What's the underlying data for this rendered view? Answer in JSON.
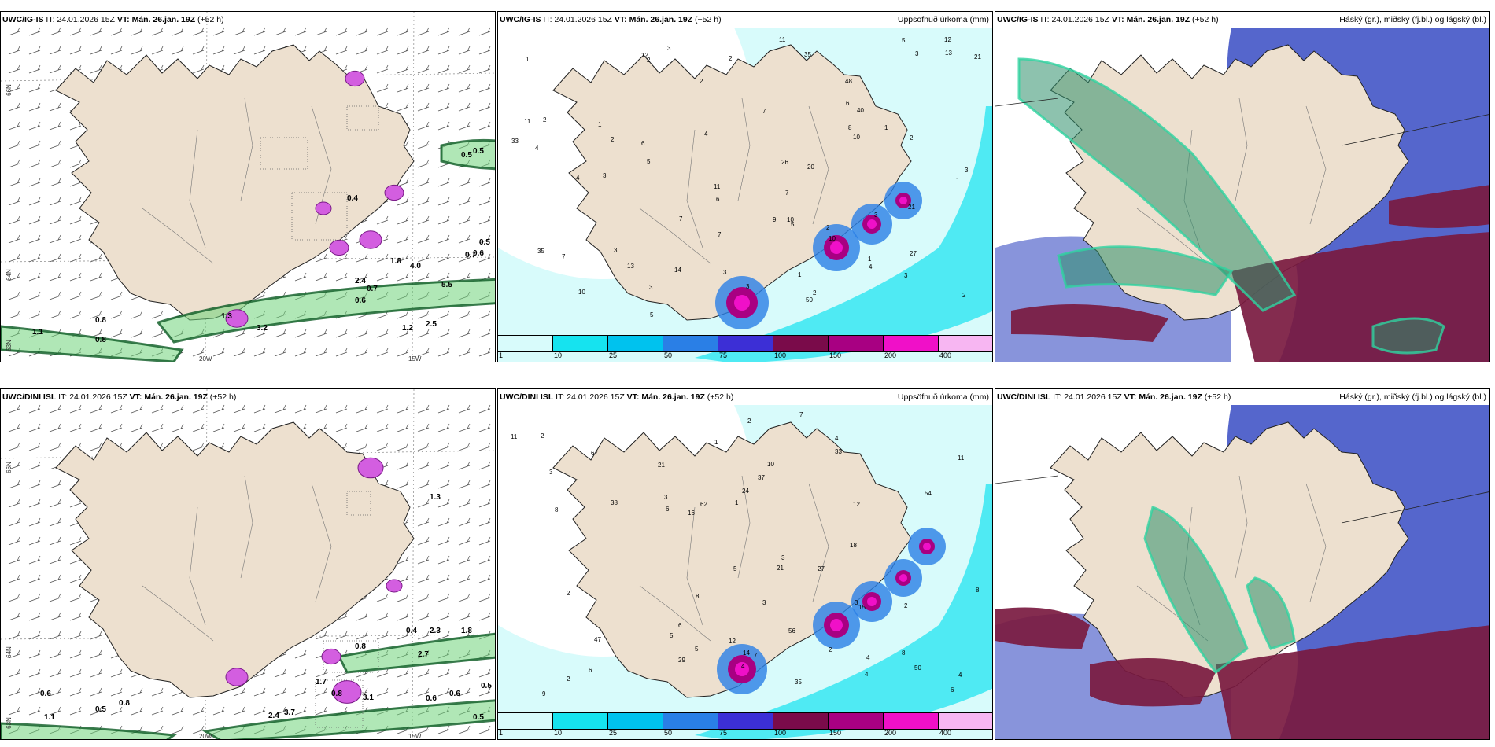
{
  "issue_time": "24.01.2026 15Z",
  "valid_time": "Mán. 26.jan. 19Z",
  "lead_time": "(+52 h)",
  "it_label": "IT:",
  "vt_label": "VT:",
  "precip_subtitle": "Uppsöfnuð úrkoma (mm)",
  "cloud_subtitle": "Háský (gr.), miðský (fj.bl.) og lágský (bl.)",
  "models": [
    {
      "name": "UWC/IG-IS"
    },
    {
      "name": "UWC/DINI ISL"
    }
  ],
  "grid_labels": {
    "lat66": "66N",
    "lat64": "64N",
    "lat63": "63N",
    "lon20": "20W",
    "lon15": "15W"
  },
  "colors": {
    "land": "#ede0cf",
    "sea": "#ffffff",
    "water_light": "#c9f5f8",
    "cyan": "#00e5f0",
    "high_cloud": "#2f8f6b",
    "mid_cloud": "#5566cc",
    "low_cloud": "#7a1a40"
  },
  "precip_legend": {
    "colors": [
      "#d8fbfb",
      "#16e3ef",
      "#00c2ee",
      "#2a7fe6",
      "#3c2fd6",
      "#7a0b4a",
      "#a80082",
      "#f010c8",
      "#f7b6f2"
    ],
    "labels": [
      "1",
      "10",
      "25",
      "50",
      "75",
      "100",
      "150",
      "200",
      "400"
    ]
  },
  "precip_values_top": [
    "2",
    "2",
    "3",
    "1",
    "1",
    "1",
    "1",
    "5",
    "6",
    "13",
    "7",
    "11",
    "11",
    "10",
    "10",
    "5",
    "4",
    "3",
    "3",
    "2",
    "1",
    "5",
    "3",
    "4",
    "20",
    "40",
    "3",
    "2",
    "3",
    "2",
    "10",
    "12",
    "48",
    "14",
    "3",
    "3",
    "11",
    "2",
    "3",
    "2",
    "2",
    "26",
    "21",
    "27",
    "35",
    "21",
    "9",
    "7",
    "7",
    "13",
    "7",
    "7",
    "6",
    "6",
    "1",
    "2",
    "3",
    "4",
    "5",
    "35",
    "33",
    "50",
    "8",
    "4",
    "12",
    "10"
  ],
  "precip_values_bottom": [
    "2",
    "2",
    "3",
    "3",
    "1",
    "7",
    "8",
    "4",
    "4",
    "5",
    "6",
    "6",
    "5",
    "2",
    "2",
    "3",
    "3",
    "2",
    "5",
    "11",
    "11",
    "6",
    "4",
    "27",
    "15",
    "33",
    "62",
    "37",
    "54",
    "56",
    "50",
    "8",
    "10",
    "9",
    "21",
    "35",
    "14",
    "12",
    "8",
    "12",
    "38",
    "6",
    "21",
    "29",
    "18",
    "16",
    "24",
    "7",
    "8",
    "4",
    "3",
    "1",
    "2",
    "4",
    "47",
    "67"
  ],
  "wind_values_top": [
    "0.5",
    "0.6",
    "0.5",
    "0.7",
    "0.6",
    "0.8",
    "1.1",
    "0.7",
    "2.4",
    "1.8",
    "3.2",
    "1.3",
    "2.5",
    "4.0",
    "5.5",
    "1.2",
    "0.8",
    "0.5",
    "0.4"
  ],
  "wind_values_bottom": [
    "1.1",
    "0.6",
    "0.8",
    "0.5",
    "0.6",
    "0.5",
    "0.8",
    "0.4",
    "1.8",
    "2.3",
    "0.8",
    "3.1",
    "2.7",
    "1.3",
    "0.6",
    "1.7",
    "0.5",
    "2.4",
    "3.7"
  ]
}
